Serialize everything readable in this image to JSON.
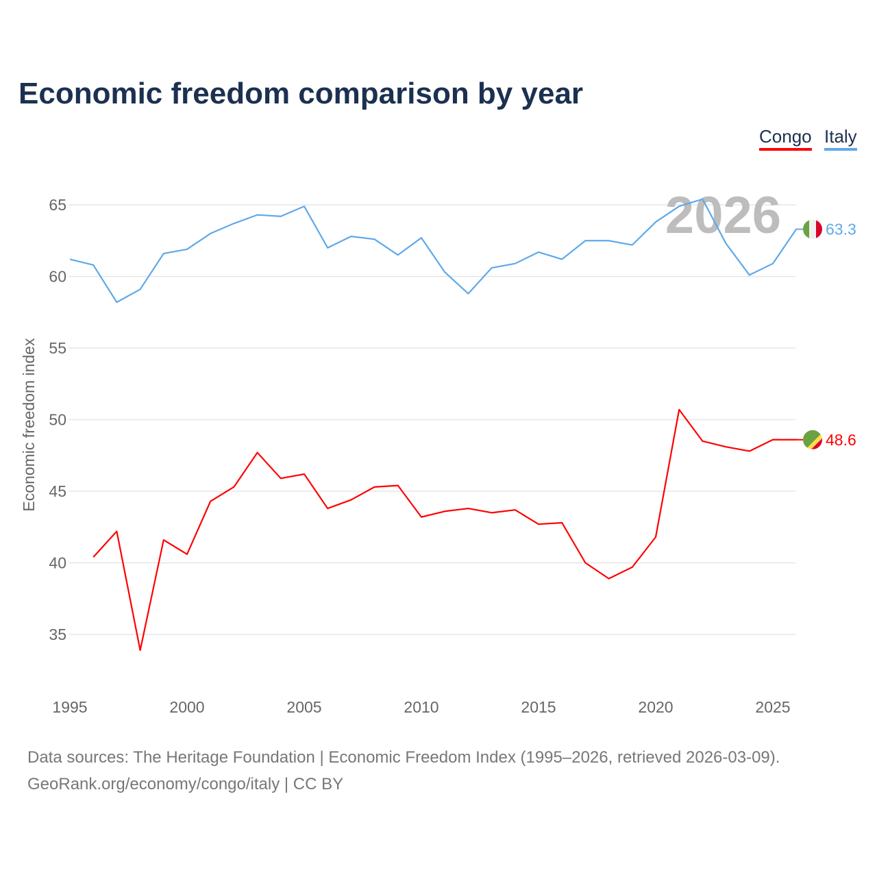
{
  "title": "Economic freedom comparison by year",
  "footer": {
    "line1": "Data sources: The Heritage Foundation | Economic Freedom Index (1995–2026, retrieved 2026-03-09).",
    "line2": "GeoRank.org/economy/congo/italy | CC BY"
  },
  "chart_data": {
    "type": "line",
    "title": "Economic freedom comparison by year",
    "xlabel": "",
    "ylabel": "Economic freedom index",
    "xlim": [
      1995,
      2026
    ],
    "ylim": [
      32,
      67
    ],
    "xticks": [
      1995,
      2000,
      2005,
      2010,
      2015,
      2020,
      2025
    ],
    "yticks": [
      35,
      40,
      45,
      50,
      55,
      60,
      65
    ],
    "grid": true,
    "legend_position": "top-right",
    "year_label": "2026",
    "series": [
      {
        "name": "Congo",
        "color": "#ff0000",
        "end_label": "48.6",
        "flag": "congo-flag",
        "x": [
          1996,
          1997,
          1998,
          1999,
          2000,
          2001,
          2002,
          2003,
          2004,
          2005,
          2006,
          2007,
          2008,
          2009,
          2010,
          2011,
          2012,
          2013,
          2014,
          2015,
          2016,
          2017,
          2018,
          2019,
          2020,
          2021,
          2022,
          2023,
          2024,
          2025,
          2026
        ],
        "values": [
          40.4,
          42.2,
          33.9,
          41.6,
          40.6,
          44.3,
          45.3,
          47.7,
          45.9,
          46.2,
          43.8,
          44.4,
          45.3,
          45.4,
          43.2,
          43.6,
          43.8,
          43.5,
          43.7,
          42.7,
          42.8,
          40.0,
          38.9,
          39.7,
          41.8,
          50.7,
          48.5,
          48.1,
          47.8,
          48.6,
          48.6
        ]
      },
      {
        "name": "Italy",
        "color": "#5fa8ea",
        "end_label": "63.3",
        "flag": "italy-flag",
        "x": [
          1995,
          1996,
          1997,
          1998,
          1999,
          2000,
          2001,
          2002,
          2003,
          2004,
          2005,
          2006,
          2007,
          2008,
          2009,
          2010,
          2011,
          2012,
          2013,
          2014,
          2015,
          2016,
          2017,
          2018,
          2019,
          2020,
          2021,
          2022,
          2023,
          2024,
          2025,
          2026
        ],
        "values": [
          61.2,
          60.8,
          58.2,
          59.1,
          61.6,
          61.9,
          63.0,
          63.7,
          64.3,
          64.2,
          64.9,
          62.0,
          62.8,
          62.6,
          61.5,
          62.7,
          60.3,
          58.8,
          60.6,
          60.9,
          61.7,
          61.2,
          62.5,
          62.5,
          62.2,
          63.8,
          64.9,
          65.4,
          62.3,
          60.1,
          60.9,
          63.3
        ]
      }
    ]
  }
}
